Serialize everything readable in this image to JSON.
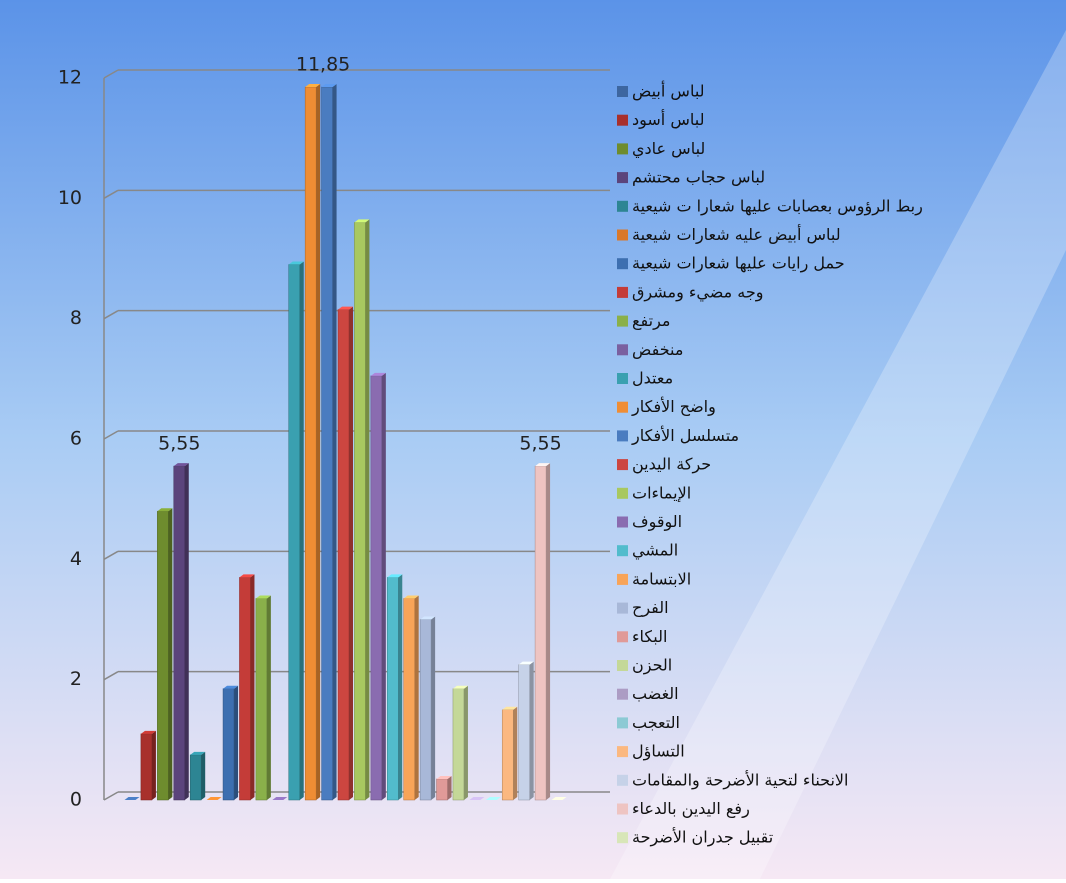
{
  "chart_data": {
    "type": "bar",
    "ylim": [
      0,
      12
    ],
    "yticks": [
      0,
      2,
      4,
      6,
      8,
      10,
      12
    ],
    "grid": true,
    "legend": "right",
    "series": [
      {
        "name": "لباس أبيض",
        "color": "#3d66a0",
        "values": [
          0
        ]
      },
      {
        "name": "لباس أسود",
        "color": "#a8302c",
        "values": [
          1.1
        ]
      },
      {
        "name": "لباس عادي",
        "color": "#6e8c2e",
        "values": [
          4.8
        ]
      },
      {
        "name": "لباس حجاب محتشم",
        "color": "#5b447c",
        "values": [
          5.55
        ],
        "value_labels": [
          "5,55"
        ]
      },
      {
        "name": "ربط الرؤوس بعصابات عليها شعارا ت شيعية",
        "color": "#2d8593",
        "values": [
          0.75
        ]
      },
      {
        "name": "لباس أبيض عليه شعارات شيعية",
        "color": "#d9782a",
        "values": [
          0
        ]
      },
      {
        "name": "حمل رايات عليها شعارات شيعية",
        "color": "#3d6fb0",
        "values": [
          1.85
        ]
      },
      {
        "name": "وجه مضيء ومشرق",
        "color": "#c43c38",
        "values": [
          3.7
        ]
      },
      {
        "name": "مرتفع",
        "color": "#8ab04a",
        "values": [
          3.35
        ]
      },
      {
        "name": "منخفض",
        "color": "#7a60a0",
        "values": [
          0
        ]
      },
      {
        "name": "معتدل",
        "color": "#3aa0b0",
        "values": [
          8.9
        ]
      },
      {
        "name": "واضح الأفكار",
        "color": "#ef8d34",
        "values": [
          11.85
        ]
      },
      {
        "name": "متسلسل الأفكار",
        "color": "#4a7cc0",
        "values": [
          11.85
        ],
        "value_labels": [
          "11,85"
        ]
      },
      {
        "name": "حركة اليدين",
        "color": "#cc4640",
        "values": [
          8.15
        ]
      },
      {
        "name": "الإيماءات",
        "color": "#a8c860",
        "values": [
          9.6
        ]
      },
      {
        "name": "الوقوف",
        "color": "#8a6cb0",
        "values": [
          7.05
        ]
      },
      {
        "name": "المشي",
        "color": "#52bccc",
        "values": [
          3.7
        ]
      },
      {
        "name": "الابتسامة",
        "color": "#f8a458",
        "values": [
          3.35
        ]
      },
      {
        "name": "الفرح",
        "color": "#a8b8d8",
        "values": [
          3.0
        ]
      },
      {
        "name": "البكاء",
        "color": "#e09a98",
        "values": [
          0.35
        ]
      },
      {
        "name": "الحزن",
        "color": "#c4d898",
        "values": [
          1.85
        ]
      },
      {
        "name": "الغضب",
        "color": "#ac9cc4",
        "values": [
          0
        ]
      },
      {
        "name": "التعجب",
        "color": "#8ccad4",
        "values": [
          0
        ]
      },
      {
        "name": "التساؤل",
        "color": "#fbb880",
        "values": [
          1.5
        ]
      },
      {
        "name": "الانحناء لتحية الأضرحة والمقامات",
        "color": "#c6d2e8",
        "values": [
          2.25
        ]
      },
      {
        "name": "رفع اليدين بالدعاء",
        "color": "#eec4c2",
        "values": [
          5.55
        ],
        "value_labels": [
          "5,55"
        ]
      },
      {
        "name": "تقبيل جدران الأضرحة",
        "color": "#d8e6b8",
        "values": [
          0
        ]
      }
    ]
  }
}
